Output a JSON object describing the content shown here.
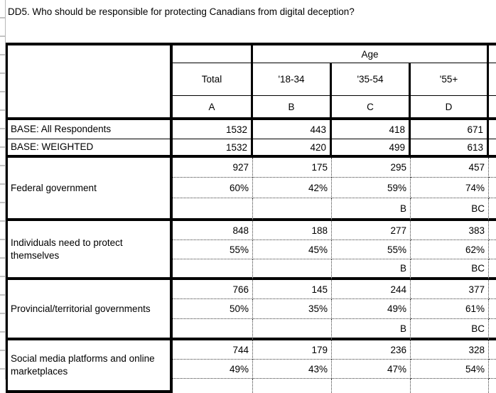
{
  "title": "DD5. Who should be responsible for protecting Canadians from digital deception?",
  "table": {
    "banner_label": "Age",
    "columns": [
      {
        "header": "Total",
        "letter": "A"
      },
      {
        "header": "'18-34",
        "letter": "B"
      },
      {
        "header": "'35-54",
        "letter": "C"
      },
      {
        "header": "'55+",
        "letter": "D"
      }
    ],
    "base_rows": [
      {
        "label": "BASE: All Respondents",
        "values": [
          "1532",
          "443",
          "418",
          "671"
        ]
      },
      {
        "label": "BASE: WEIGHTED",
        "values": [
          "1532",
          "420",
          "499",
          "613"
        ]
      }
    ],
    "stat_rows": [
      {
        "label": "Federal government",
        "counts": [
          "927",
          "175",
          "295",
          "457"
        ],
        "percents": [
          "60%",
          "42%",
          "59%",
          "74%"
        ],
        "sig": [
          "",
          "",
          "B",
          "BC"
        ]
      },
      {
        "label": "Individuals need to protect themselves",
        "counts": [
          "848",
          "188",
          "277",
          "383"
        ],
        "percents": [
          "55%",
          "45%",
          "55%",
          "62%"
        ],
        "sig": [
          "",
          "",
          "B",
          "BC"
        ]
      },
      {
        "label": "Provincial/territorial governments",
        "counts": [
          "766",
          "145",
          "244",
          "377"
        ],
        "percents": [
          "50%",
          "35%",
          "49%",
          "61%"
        ],
        "sig": [
          "",
          "",
          "B",
          "BC"
        ]
      },
      {
        "label": "Social media platforms and online marketplaces",
        "counts": [
          "744",
          "179",
          "236",
          "328"
        ],
        "percents": [
          "49%",
          "43%",
          "47%",
          "54%"
        ],
        "sig": [
          "",
          "",
          "",
          ""
        ]
      }
    ]
  }
}
